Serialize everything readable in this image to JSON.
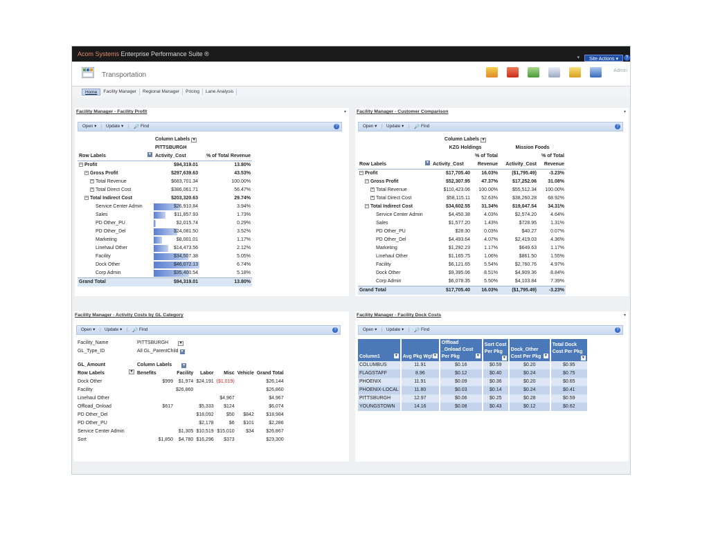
{
  "app": {
    "brand_part1": "Acom Systems",
    "brand_part2": "Enterprise Performance Suite ®",
    "site_actions": "Site Actions ▾",
    "help": "?",
    "admin": "Admin",
    "site_title": "Transportation"
  },
  "tabs": [
    {
      "label": "Home",
      "active": true
    },
    {
      "label": "Facility Manager",
      "active": false
    },
    {
      "label": "Regional Manager",
      "active": false
    },
    {
      "label": "Pricing",
      "active": false
    },
    {
      "label": "Lane Analysis",
      "active": false
    }
  ],
  "toolbar": {
    "open": "Open ▾",
    "update": "Update ▾",
    "find": "Find"
  },
  "profit_panel": {
    "title": "Facility Manager - Facility Profit",
    "column_labels": "Column Labels",
    "pittsburgh": "PITTSBURGH",
    "row_labels": "Row Labels",
    "col1": "Activity_Cost",
    "col2": "% of Total Revenue",
    "rows": [
      {
        "label": "Profit",
        "v": "$94,319.01",
        "p": "13.80%",
        "bold": true,
        "exp": "−",
        "indent": 0
      },
      {
        "label": "Gross Profit",
        "v": "$297,639.63",
        "p": "43.53%",
        "bold": true,
        "exp": "−",
        "indent": 1
      },
      {
        "label": "Total Revenue",
        "v": "$683,701.34",
        "p": "100.00%",
        "bold": false,
        "exp": "+",
        "indent": 2
      },
      {
        "label": "Total Direct Cost",
        "v": "$386,061.71",
        "p": "56.47%",
        "bold": false,
        "exp": "+",
        "indent": 2
      },
      {
        "label": "Total Indirect Cost",
        "v": "$203,320.63",
        "p": "29.74%",
        "bold": true,
        "exp": "−",
        "indent": 1
      },
      {
        "label": "Service Center Admin",
        "v": "$26,910.84",
        "p": "3.94%",
        "bar": 0.58,
        "indent": 3
      },
      {
        "label": "Sales",
        "v": "$11,857.93",
        "p": "1.73%",
        "bar": 0.26,
        "indent": 3
      },
      {
        "label": "PD Other_PU",
        "v": "$2,015.74",
        "p": "0.29%",
        "bar": 0.05,
        "indent": 3
      },
      {
        "label": "PD Other_Del",
        "v": "$24,081.50",
        "p": "3.52%",
        "bar": 0.52,
        "indent": 3
      },
      {
        "label": "Marketing",
        "v": "$8,001.01",
        "p": "1.17%",
        "bar": 0.18,
        "indent": 3
      },
      {
        "label": "Linehaul Other",
        "v": "$14,473.56",
        "p": "2.12%",
        "bar": 0.32,
        "indent": 3
      },
      {
        "label": "Facility",
        "v": "$34,507.38",
        "p": "5.05%",
        "bar": 0.75,
        "indent": 3
      },
      {
        "label": "Dock Other",
        "v": "$46,072.13",
        "p": "6.74%",
        "bar": 1.0,
        "indent": 3
      },
      {
        "label": "Corp Admin",
        "v": "$35,400.54",
        "p": "5.18%",
        "bar": 0.77,
        "indent": 3
      }
    ],
    "grand_total": {
      "label": "Grand Total",
      "v": "$94,319.01",
      "p": "13.80%"
    }
  },
  "customer_panel": {
    "title": "Facility Manager - Customer Comparison",
    "column_labels": "Column Labels",
    "kzg": "KZG Holdings",
    "mission": "Mission Foods",
    "row_labels": "Row Labels",
    "pct_a": "% of Total",
    "pct_b": "Revenue",
    "col_ac": "Activity_Cost",
    "rows": [
      {
        "label": "Profit",
        "a": "$17,705.40",
        "b": "16.03%",
        "c": "($1,795.49)",
        "d": "-3.23%",
        "bold": true,
        "exp": "−",
        "indent": 0
      },
      {
        "label": "Gross Profit",
        "a": "$52,307.95",
        "b": "47.37%",
        "c": "$17,252.06",
        "d": "31.08%",
        "bold": true,
        "exp": "−",
        "indent": 1
      },
      {
        "label": "Total Revenue",
        "a": "$110,423.06",
        "b": "100.00%",
        "c": "$55,512.34",
        "d": "100.00%",
        "bold": false,
        "exp": "+",
        "indent": 2
      },
      {
        "label": "Total Direct Cost",
        "a": "$58,115.11",
        "b": "52.63%",
        "c": "$38,260.28",
        "d": "68.92%",
        "bold": false,
        "exp": "+",
        "indent": 2
      },
      {
        "label": "Total Indirect Cost",
        "a": "$34,602.55",
        "b": "31.34%",
        "c": "$19,047.54",
        "d": "34.31%",
        "bold": true,
        "exp": "−",
        "indent": 1
      },
      {
        "label": "Service Center Admin",
        "a": "$4,450.38",
        "b": "4.03%",
        "c": "$2,574.20",
        "d": "4.64%",
        "indent": 3
      },
      {
        "label": "Sales",
        "a": "$1,577.20",
        "b": "1.43%",
        "c": "$728.95",
        "d": "1.31%",
        "indent": 3
      },
      {
        "label": "PD Other_PU",
        "a": "$28.30",
        "b": "0.03%",
        "c": "$40.27",
        "d": "0.07%",
        "indent": 3
      },
      {
        "label": "PD Other_Del",
        "a": "$4,493.64",
        "b": "4.07%",
        "c": "$2,419.03",
        "d": "4.36%",
        "indent": 3
      },
      {
        "label": "Marketing",
        "a": "$1,292.23",
        "b": "1.17%",
        "c": "$649.63",
        "d": "1.17%",
        "indent": 3
      },
      {
        "label": "Linehaul Other",
        "a": "$1,165.75",
        "b": "1.06%",
        "c": "$861.50",
        "d": "1.55%",
        "indent": 3
      },
      {
        "label": "Facility",
        "a": "$6,121.65",
        "b": "5.54%",
        "c": "$2,760.76",
        "d": "4.97%",
        "indent": 3
      },
      {
        "label": "Dock Other",
        "a": "$9,395.06",
        "b": "8.51%",
        "c": "$4,909.36",
        "d": "8.84%",
        "indent": 3
      },
      {
        "label": "Corp Admin",
        "a": "$6,078.35",
        "b": "5.50%",
        "c": "$4,103.84",
        "d": "7.39%",
        "indent": 3
      }
    ],
    "grand_total": {
      "label": "Grand Total",
      "a": "$17,705.40",
      "b": "16.03%",
      "c": "($1,795.49)",
      "d": "-3.23%"
    }
  },
  "gl_panel": {
    "title": "Facility Manager - Activity Costs by GL Category",
    "filter1_label": "Facility_Name",
    "filter1_value": "PITTSBURGH",
    "filter2_label": "GL_Type_ID",
    "filter2_value": "All GL_ParentChild",
    "gl_amount": "GL_Amount",
    "column_labels": "Column Labels",
    "row_labels": "Row Labels",
    "headers": [
      "Benefits",
      "Facility",
      "Labor",
      "Misc",
      "Vehicle",
      "Grand Total"
    ],
    "rows": [
      {
        "label": "Dock Other",
        "cells": [
          "$999",
          "$1,974",
          "$24,191",
          "($1,019)",
          "",
          "$26,144"
        ],
        "neg": 3
      },
      {
        "label": "Facility",
        "cells": [
          "",
          "$26,860",
          "",
          "",
          "",
          "$26,860"
        ]
      },
      {
        "label": "Linehaul Other",
        "cells": [
          "",
          "",
          "",
          "$4,967",
          "",
          "$4,967"
        ]
      },
      {
        "label": "Offload_Onload",
        "cells": [
          "$617",
          "",
          "$5,333",
          "$124",
          "",
          "$6,074"
        ]
      },
      {
        "label": "PD Other_Del",
        "cells": [
          "",
          "",
          "$18,092",
          "$50",
          "$842",
          "$18,984"
        ]
      },
      {
        "label": "PD Other_PU",
        "cells": [
          "",
          "",
          "$2,178",
          "$6",
          "$101",
          "$2,286"
        ]
      },
      {
        "label": "Service Center Admin",
        "cells": [
          "",
          "$1,305",
          "$10,519",
          "$15,010",
          "$34",
          "$26,867"
        ]
      },
      {
        "label": "Sort",
        "cells": [
          "$1,850",
          "$4,780",
          "$16,296",
          "$373",
          "",
          "$23,300"
        ]
      }
    ]
  },
  "dock_panel": {
    "title": "Facility Manager - Facility Dock Costs",
    "headers": [
      {
        "l1": "",
        "l2": "",
        "l3": "Column1"
      },
      {
        "l1": "",
        "l2": "",
        "l3": "Avg Pkg Wgt"
      },
      {
        "l1": "Offload",
        "l2": "_Onload Cost",
        "l3": "Per Pkg"
      },
      {
        "l1": "",
        "l2": "Sort Cost",
        "l3": "Per Pkg"
      },
      {
        "l1": "",
        "l2": "Dock_Other",
        "l3": "Cost Per Pkg"
      },
      {
        "l1": "",
        "l2": "Total Dock",
        "l3": "Cost Per Pkg"
      }
    ],
    "rows": [
      [
        "COLUMBUS",
        "11.91",
        "$0.16",
        "$0.59",
        "$0.20",
        "$0.95"
      ],
      [
        "FLAGSTAFF",
        "8.96",
        "$0.12",
        "$0.40",
        "$0.24",
        "$0.75"
      ],
      [
        "PHOENIX",
        "11.91",
        "$0.09",
        "$0.36",
        "$0.20",
        "$0.65"
      ],
      [
        "PHOENIX-LOCAL",
        "11.80",
        "$0.03",
        "$0.14",
        "$0.24",
        "$0.41"
      ],
      [
        "PITTSBURGH",
        "12.97",
        "$0.06",
        "$0.25",
        "$0.28",
        "$0.59"
      ],
      [
        "YOUNGSTOWN",
        "14.16",
        "$0.08",
        "$0.43",
        "$0.12",
        "$0.62"
      ]
    ]
  }
}
